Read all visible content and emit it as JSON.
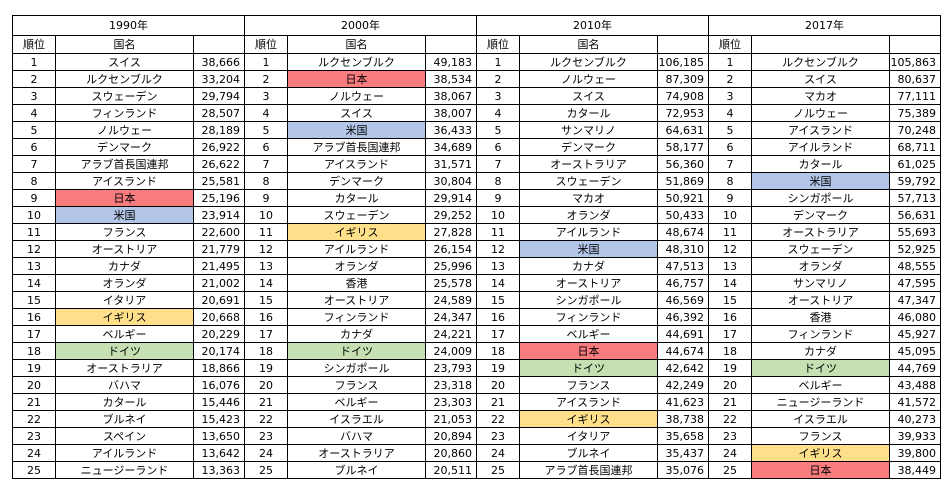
{
  "colors": {
    "japan": "#f97c7f",
    "usa": "#b4c6e7",
    "uk": "#ffe08a",
    "germany": "#c6e0b4",
    "border": "#000000"
  },
  "chart_data": {
    "type": "table",
    "sections": [
      {
        "year": "1990年",
        "headers": {
          "rank": "順位",
          "name": "国名",
          "value": ""
        },
        "rows": [
          {
            "rank": "1",
            "country": "スイス",
            "value": "38,666",
            "highlight": null
          },
          {
            "rank": "2",
            "country": "ルクセンブルク",
            "value": "33,204",
            "highlight": null
          },
          {
            "rank": "3",
            "country": "スウェーデン",
            "value": "29,794",
            "highlight": null
          },
          {
            "rank": "4",
            "country": "フィンランド",
            "value": "28,507",
            "highlight": null
          },
          {
            "rank": "5",
            "country": "ノルウェー",
            "value": "28,189",
            "highlight": null
          },
          {
            "rank": "6",
            "country": "デンマーク",
            "value": "26,922",
            "highlight": null
          },
          {
            "rank": "7",
            "country": "アラブ首長国連邦",
            "value": "26,622",
            "highlight": null
          },
          {
            "rank": "8",
            "country": "アイスランド",
            "value": "25,581",
            "highlight": null
          },
          {
            "rank": "9",
            "country": "日本",
            "value": "25,196",
            "highlight": "japan"
          },
          {
            "rank": "10",
            "country": "米国",
            "value": "23,914",
            "highlight": "usa"
          },
          {
            "rank": "11",
            "country": "フランス",
            "value": "22,600",
            "highlight": null
          },
          {
            "rank": "12",
            "country": "オーストリア",
            "value": "21,779",
            "highlight": null
          },
          {
            "rank": "13",
            "country": "カナダ",
            "value": "21,495",
            "highlight": null
          },
          {
            "rank": "14",
            "country": "オランダ",
            "value": "21,002",
            "highlight": null
          },
          {
            "rank": "15",
            "country": "イタリア",
            "value": "20,691",
            "highlight": null
          },
          {
            "rank": "16",
            "country": "イギリス",
            "value": "20,668",
            "highlight": "uk"
          },
          {
            "rank": "17",
            "country": "ベルギー",
            "value": "20,229",
            "highlight": null
          },
          {
            "rank": "18",
            "country": "ドイツ",
            "value": "20,174",
            "highlight": "germany"
          },
          {
            "rank": "19",
            "country": "オーストラリア",
            "value": "18,866",
            "highlight": null
          },
          {
            "rank": "20",
            "country": "バハマ",
            "value": "16,076",
            "highlight": null
          },
          {
            "rank": "21",
            "country": "カタール",
            "value": "15,446",
            "highlight": null
          },
          {
            "rank": "22",
            "country": "ブルネイ",
            "value": "15,423",
            "highlight": null
          },
          {
            "rank": "23",
            "country": "スペイン",
            "value": "13,650",
            "highlight": null
          },
          {
            "rank": "24",
            "country": "アイルランド",
            "value": "13,642",
            "highlight": null
          },
          {
            "rank": "25",
            "country": "ニュージーランド",
            "value": "13,363",
            "highlight": null
          }
        ]
      },
      {
        "year": "2000年",
        "headers": {
          "rank": "順位",
          "name": "国名",
          "value": ""
        },
        "rows": [
          {
            "rank": "1",
            "country": "ルクセンブルク",
            "value": "49,183",
            "highlight": null
          },
          {
            "rank": "2",
            "country": "日本",
            "value": "38,534",
            "highlight": "japan"
          },
          {
            "rank": "3",
            "country": "ノルウェー",
            "value": "38,067",
            "highlight": null
          },
          {
            "rank": "4",
            "country": "スイス",
            "value": "38,007",
            "highlight": null
          },
          {
            "rank": "5",
            "country": "米国",
            "value": "36,433",
            "highlight": "usa"
          },
          {
            "rank": "6",
            "country": "アラブ首長国連邦",
            "value": "34,689",
            "highlight": null
          },
          {
            "rank": "7",
            "country": "アイスランド",
            "value": "31,571",
            "highlight": null
          },
          {
            "rank": "8",
            "country": "デンマーク",
            "value": "30,804",
            "highlight": null
          },
          {
            "rank": "9",
            "country": "カタール",
            "value": "29,914",
            "highlight": null
          },
          {
            "rank": "10",
            "country": "スウェーデン",
            "value": "29,252",
            "highlight": null
          },
          {
            "rank": "11",
            "country": "イギリス",
            "value": "27,828",
            "highlight": "uk"
          },
          {
            "rank": "12",
            "country": "アイルランド",
            "value": "26,154",
            "highlight": null
          },
          {
            "rank": "13",
            "country": "オランダ",
            "value": "25,996",
            "highlight": null
          },
          {
            "rank": "14",
            "country": "香港",
            "value": "25,578",
            "highlight": null
          },
          {
            "rank": "15",
            "country": "オーストリア",
            "value": "24,589",
            "highlight": null
          },
          {
            "rank": "16",
            "country": "フィンランド",
            "value": "24,347",
            "highlight": null
          },
          {
            "rank": "17",
            "country": "カナダ",
            "value": "24,221",
            "highlight": null
          },
          {
            "rank": "18",
            "country": "ドイツ",
            "value": "24,009",
            "highlight": "germany"
          },
          {
            "rank": "19",
            "country": "シンガポール",
            "value": "23,793",
            "highlight": null
          },
          {
            "rank": "20",
            "country": "フランス",
            "value": "23,318",
            "highlight": null
          },
          {
            "rank": "21",
            "country": "ベルギー",
            "value": "23,303",
            "highlight": null
          },
          {
            "rank": "22",
            "country": "イスラエル",
            "value": "21,053",
            "highlight": null
          },
          {
            "rank": "23",
            "country": "バハマ",
            "value": "20,894",
            "highlight": null
          },
          {
            "rank": "24",
            "country": "オーストラリア",
            "value": "20,860",
            "highlight": null
          },
          {
            "rank": "25",
            "country": "ブルネイ",
            "value": "20,511",
            "highlight": null
          }
        ]
      },
      {
        "year": "2010年",
        "headers": {
          "rank": "順位",
          "name": "国名",
          "value": ""
        },
        "rows": [
          {
            "rank": "1",
            "country": "ルクセンブルク",
            "value": "106,185",
            "highlight": null
          },
          {
            "rank": "2",
            "country": "ノルウェー",
            "value": "87,309",
            "highlight": null
          },
          {
            "rank": "3",
            "country": "スイス",
            "value": "74,908",
            "highlight": null
          },
          {
            "rank": "4",
            "country": "カタール",
            "value": "72,953",
            "highlight": null
          },
          {
            "rank": "5",
            "country": "サンマリノ",
            "value": "64,631",
            "highlight": null
          },
          {
            "rank": "6",
            "country": "デンマーク",
            "value": "58,177",
            "highlight": null
          },
          {
            "rank": "7",
            "country": "オーストラリア",
            "value": "56,360",
            "highlight": null
          },
          {
            "rank": "8",
            "country": "スウェーデン",
            "value": "51,869",
            "highlight": null
          },
          {
            "rank": "9",
            "country": "マカオ",
            "value": "50,921",
            "highlight": null
          },
          {
            "rank": "10",
            "country": "オランダ",
            "value": "50,433",
            "highlight": null
          },
          {
            "rank": "11",
            "country": "アイルランド",
            "value": "48,674",
            "highlight": null
          },
          {
            "rank": "12",
            "country": "米国",
            "value": "48,310",
            "highlight": "usa"
          },
          {
            "rank": "13",
            "country": "カナダ",
            "value": "47,513",
            "highlight": null
          },
          {
            "rank": "14",
            "country": "オーストリア",
            "value": "46,757",
            "highlight": null
          },
          {
            "rank": "15",
            "country": "シンガポール",
            "value": "46,569",
            "highlight": null
          },
          {
            "rank": "16",
            "country": "フィンランド",
            "value": "46,392",
            "highlight": null
          },
          {
            "rank": "17",
            "country": "ベルギー",
            "value": "44,691",
            "highlight": null
          },
          {
            "rank": "18",
            "country": "日本",
            "value": "44,674",
            "highlight": "japan"
          },
          {
            "rank": "19",
            "country": "ドイツ",
            "value": "42,642",
            "highlight": "germany"
          },
          {
            "rank": "20",
            "country": "フランス",
            "value": "42,249",
            "highlight": null
          },
          {
            "rank": "21",
            "country": "アイスランド",
            "value": "41,623",
            "highlight": null
          },
          {
            "rank": "22",
            "country": "イギリス",
            "value": "38,738",
            "highlight": "uk"
          },
          {
            "rank": "23",
            "country": "イタリア",
            "value": "35,658",
            "highlight": null
          },
          {
            "rank": "24",
            "country": "ブルネイ",
            "value": "35,437",
            "highlight": null
          },
          {
            "rank": "25",
            "country": "アラブ首長国連邦",
            "value": "35,076",
            "highlight": null
          }
        ]
      },
      {
        "year": "2017年",
        "headers": {
          "rank": "順位",
          "name": "",
          "value": ""
        },
        "rows": [
          {
            "rank": "1",
            "country": "ルクセンブルク",
            "value": "105,863",
            "highlight": null
          },
          {
            "rank": "2",
            "country": "スイス",
            "value": "80,637",
            "highlight": null
          },
          {
            "rank": "3",
            "country": "マカオ",
            "value": "77,111",
            "highlight": null
          },
          {
            "rank": "4",
            "country": "ノルウェー",
            "value": "75,389",
            "highlight": null
          },
          {
            "rank": "5",
            "country": "アイスランド",
            "value": "70,248",
            "highlight": null
          },
          {
            "rank": "6",
            "country": "アイルランド",
            "value": "68,711",
            "highlight": null
          },
          {
            "rank": "7",
            "country": "カタール",
            "value": "61,025",
            "highlight": null
          },
          {
            "rank": "8",
            "country": "米国",
            "value": "59,792",
            "highlight": "usa"
          },
          {
            "rank": "9",
            "country": "シンガポール",
            "value": "57,713",
            "highlight": null
          },
          {
            "rank": "10",
            "country": "デンマーク",
            "value": "56,631",
            "highlight": null
          },
          {
            "rank": "11",
            "country": "オーストラリア",
            "value": "55,693",
            "highlight": null
          },
          {
            "rank": "12",
            "country": "スウェーデン",
            "value": "52,925",
            "highlight": null
          },
          {
            "rank": "13",
            "country": "オランダ",
            "value": "48,555",
            "highlight": null
          },
          {
            "rank": "14",
            "country": "サンマリノ",
            "value": "47,595",
            "highlight": null
          },
          {
            "rank": "15",
            "country": "オーストリア",
            "value": "47,347",
            "highlight": null
          },
          {
            "rank": "16",
            "country": "香港",
            "value": "46,080",
            "highlight": null
          },
          {
            "rank": "17",
            "country": "フィンランド",
            "value": "45,927",
            "highlight": null
          },
          {
            "rank": "18",
            "country": "カナダ",
            "value": "45,095",
            "highlight": null
          },
          {
            "rank": "19",
            "country": "ドイツ",
            "value": "44,769",
            "highlight": "germany"
          },
          {
            "rank": "20",
            "country": "ベルギー",
            "value": "43,488",
            "highlight": null
          },
          {
            "rank": "21",
            "country": "ニュージーランド",
            "value": "41,572",
            "highlight": null
          },
          {
            "rank": "22",
            "country": "イスラエル",
            "value": "40,273",
            "highlight": null
          },
          {
            "rank": "23",
            "country": "フランス",
            "value": "39,933",
            "highlight": null
          },
          {
            "rank": "24",
            "country": "イギリス",
            "value": "39,800",
            "highlight": "uk"
          },
          {
            "rank": "25",
            "country": "日本",
            "value": "38,449",
            "highlight": "japan"
          }
        ]
      }
    ]
  }
}
